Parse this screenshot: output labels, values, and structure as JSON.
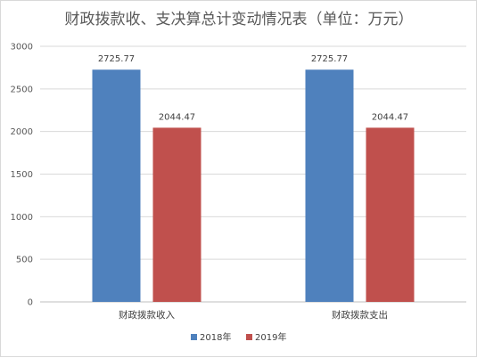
{
  "chart_data": {
    "type": "bar",
    "title": "财政拨款收、支决算总计变动情况表（单位：万元）",
    "categories": [
      "财政拨款收入",
      "财政拨款支出"
    ],
    "series": [
      {
        "name": "2018年",
        "color": "#4f81bd",
        "values": [
          2725.77,
          2725.77
        ],
        "labels": [
          "2725.77",
          "2725.77"
        ]
      },
      {
        "name": "2019年",
        "color": "#c0504d",
        "values": [
          2044.47,
          2044.47
        ],
        "labels": [
          "2044.47",
          "2044.47"
        ]
      }
    ],
    "ylim": [
      0,
      3000
    ],
    "yticks": [
      0,
      500,
      1000,
      1500,
      2000,
      2500,
      3000
    ],
    "grid": true,
    "legend_position": "bottom"
  }
}
